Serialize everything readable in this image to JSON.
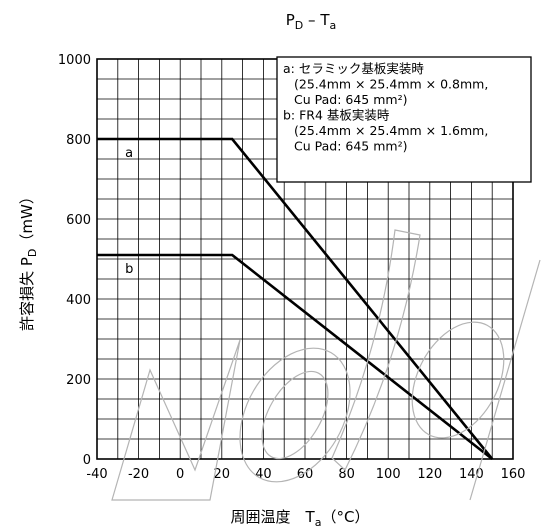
{
  "chart_data": {
    "type": "line",
    "title": {
      "main": "P",
      "main_sub": "D",
      "sep": " – T",
      "tail_sub": "a"
    },
    "xlabel": {
      "main": "周囲温度　T",
      "sub": "a",
      "unit": "（°C）"
    },
    "ylabel": {
      "main": "許容損失  P",
      "sub": "D",
      "unit": "（mW）"
    },
    "xlim": [
      -40,
      160
    ],
    "ylim": [
      0,
      1000
    ],
    "x_ticks": [
      -40,
      -20,
      0,
      20,
      40,
      60,
      80,
      100,
      120,
      140,
      160
    ],
    "y_ticks": [
      0,
      200,
      400,
      600,
      800,
      1000
    ],
    "x_minor_step": 10,
    "y_minor_step": 50,
    "grid": true,
    "legend_position": "top-right",
    "legend": [
      {
        "key": "a",
        "lines": [
          "a:  セラミック基板実装時",
          "(25.4mm × 25.4mm × 0.8mm,",
          "Cu Pad: 645 mm²)"
        ]
      },
      {
        "key": "b",
        "lines": [
          "b: FR4 基板実装時",
          "(25.4mm × 25.4mm × 1.6mm,",
          "Cu Pad: 645 mm²)"
        ]
      }
    ],
    "series": [
      {
        "name": "a",
        "points": [
          [
            -40,
            800
          ],
          [
            25,
            800
          ],
          [
            150,
            0
          ]
        ]
      },
      {
        "name": "b",
        "points": [
          [
            -40,
            510
          ],
          [
            25,
            510
          ],
          [
            150,
            0
          ]
        ]
      }
    ],
    "watermark": "Model",
    "colors": {
      "line": "#000000",
      "grid": "#000000",
      "watermark": "#b4b4b4"
    }
  }
}
